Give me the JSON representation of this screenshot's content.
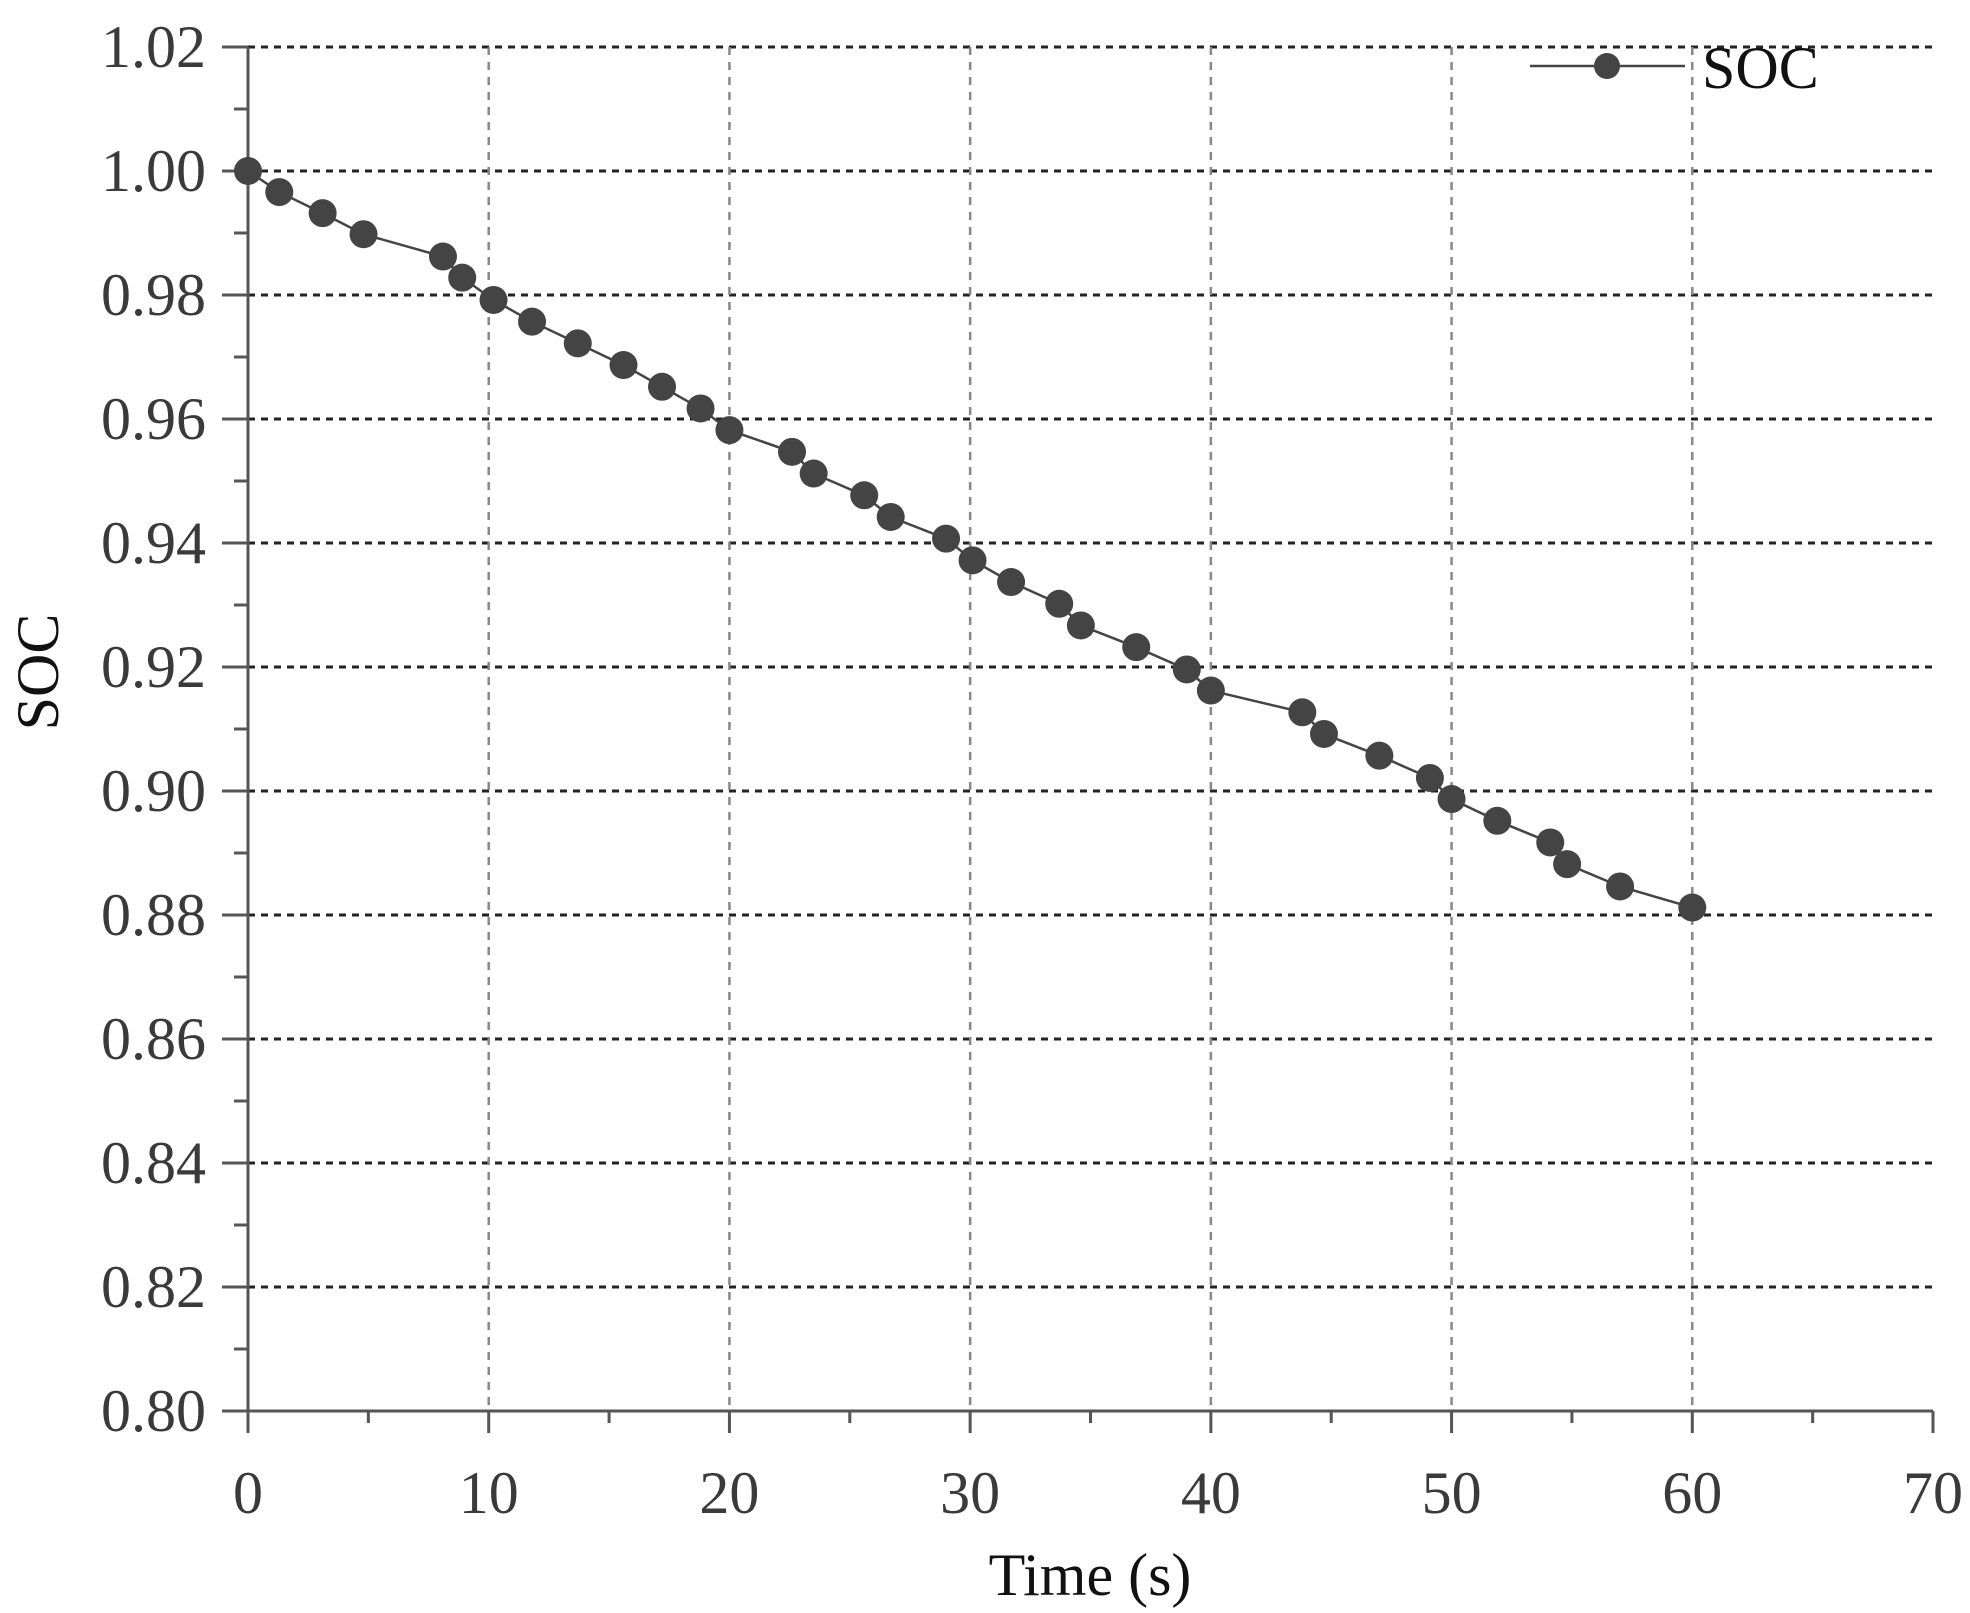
{
  "chart_data": {
    "type": "line",
    "title": "",
    "xlabel": "Time (s)",
    "ylabel": "SOC",
    "xlim": [
      0,
      70
    ],
    "ylim": [
      0.8,
      1.02
    ],
    "x_ticks": [
      0,
      10,
      20,
      30,
      40,
      50,
      60,
      70
    ],
    "y_ticks": [
      0.8,
      0.82,
      0.84,
      0.86,
      0.88,
      0.9,
      0.92,
      0.94,
      0.96,
      0.98,
      1.0,
      1.02
    ],
    "x_tick_labels": [
      "0",
      "10",
      "20",
      "30",
      "40",
      "50",
      "60",
      "70"
    ],
    "y_tick_labels": [
      "0.80",
      "0.82",
      "0.84",
      "0.86",
      "0.88",
      "0.90",
      "0.92",
      "0.94",
      "0.96",
      "0.98",
      "1.00",
      "1.02"
    ],
    "grid": true,
    "legend_position": "top-right",
    "series": [
      {
        "name": "SOC",
        "color": "#444444",
        "marker": "circle",
        "x": [
          0,
          1.3,
          3.1,
          4.8,
          8.1,
          8.9,
          10.2,
          11.8,
          13.7,
          15.6,
          17.2,
          18.8,
          20.0,
          22.6,
          23.5,
          25.6,
          26.7,
          29.0,
          30.1,
          31.7,
          33.7,
          34.6,
          36.9,
          39.0,
          40.0,
          43.8,
          44.7,
          47.0,
          49.1,
          50.0,
          51.9,
          54.1,
          54.8,
          57.0,
          60.0
        ],
        "y": [
          1.0,
          0.9966,
          0.9932,
          0.9898,
          0.9862,
          0.9828,
          0.9792,
          0.9757,
          0.9722,
          0.9687,
          0.9652,
          0.9617,
          0.9582,
          0.9547,
          0.9512,
          0.9477,
          0.9442,
          0.9407,
          0.9372,
          0.9337,
          0.9302,
          0.9267,
          0.9232,
          0.9196,
          0.9162,
          0.9127,
          0.9092,
          0.9057,
          0.9021,
          0.8987,
          0.8952,
          0.8917,
          0.8882,
          0.8846,
          0.8812
        ]
      }
    ]
  }
}
